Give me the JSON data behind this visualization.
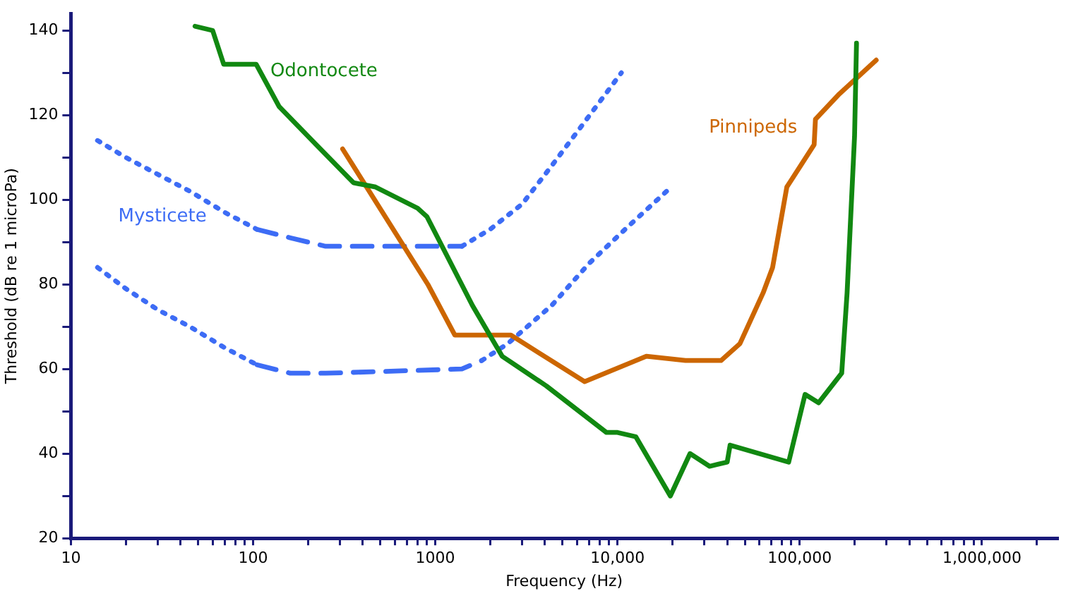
{
  "chart_data": {
    "type": "line",
    "xlabel": "Frequency (Hz)",
    "ylabel": "Threshold (dB re 1 microPa)",
    "log": "x",
    "grid": false,
    "marker": "none",
    "xlim": [
      10,
      2600000
    ],
    "ylim": [
      20,
      144
    ],
    "xticks": [
      {
        "value": 10,
        "label": "10"
      },
      {
        "value": 20,
        "label": null
      },
      {
        "value": 30,
        "label": null
      },
      {
        "value": 40,
        "label": null
      },
      {
        "value": 50,
        "label": null
      },
      {
        "value": 60,
        "label": null
      },
      {
        "value": 70,
        "label": null
      },
      {
        "value": 80,
        "label": null
      },
      {
        "value": 90,
        "label": null
      },
      {
        "value": 100,
        "label": "100"
      },
      {
        "value": 200,
        "label": null
      },
      {
        "value": 300,
        "label": null
      },
      {
        "value": 400,
        "label": null
      },
      {
        "value": 500,
        "label": null
      },
      {
        "value": 600,
        "label": null
      },
      {
        "value": 700,
        "label": null
      },
      {
        "value": 800,
        "label": null
      },
      {
        "value": 900,
        "label": null
      },
      {
        "value": 1000,
        "label": "1000"
      },
      {
        "value": 2000,
        "label": null
      },
      {
        "value": 3000,
        "label": null
      },
      {
        "value": 4000,
        "label": null
      },
      {
        "value": 5000,
        "label": null
      },
      {
        "value": 6000,
        "label": null
      },
      {
        "value": 7000,
        "label": null
      },
      {
        "value": 8000,
        "label": null
      },
      {
        "value": 9000,
        "label": null
      },
      {
        "value": 10000,
        "label": "10,000"
      },
      {
        "value": 20000,
        "label": null
      },
      {
        "value": 30000,
        "label": null
      },
      {
        "value": 40000,
        "label": null
      },
      {
        "value": 50000,
        "label": null
      },
      {
        "value": 60000,
        "label": null
      },
      {
        "value": 70000,
        "label": null
      },
      {
        "value": 80000,
        "label": null
      },
      {
        "value": 90000,
        "label": null
      },
      {
        "value": 100000,
        "label": "100,000"
      },
      {
        "value": 200000,
        "label": null
      },
      {
        "value": 300000,
        "label": null
      },
      {
        "value": 400000,
        "label": null
      },
      {
        "value": 500000,
        "label": null
      },
      {
        "value": 600000,
        "label": null
      },
      {
        "value": 700000,
        "label": null
      },
      {
        "value": 800000,
        "label": null
      },
      {
        "value": 900000,
        "label": null
      },
      {
        "value": 1000000,
        "label": "1,000,000"
      },
      {
        "value": 2000000,
        "label": null
      }
    ],
    "yticks": [
      20,
      {
        "value": 30,
        "label": null
      },
      40,
      {
        "value": 50,
        "label": null
      },
      60,
      {
        "value": 70,
        "label": null
      },
      80,
      {
        "value": 90,
        "label": null
      },
      100,
      {
        "value": 110,
        "label": null
      },
      120,
      {
        "value": 130,
        "label": null
      },
      140
    ],
    "series": [
      {
        "name": "Odontocete",
        "color": "#118811",
        "line_style": "solid",
        "x": [
          48,
          60,
          69,
          104,
          139,
          222,
          356,
          470,
          800,
          900,
          1600,
          2330,
          4070,
          8700,
          10000,
          12600,
          19500,
          25000,
          32000,
          40000,
          41500,
          87000,
          107000,
          127000,
          170000,
          182000,
          200000,
          205000
        ],
        "values": [
          141,
          140,
          132,
          132,
          122,
          113,
          104,
          103,
          98,
          96,
          75,
          63,
          56,
          45,
          45,
          44,
          30,
          40,
          37,
          38,
          42,
          38,
          54,
          52,
          59,
          78,
          115,
          137
        ]
      },
      {
        "name": "Pinnipeds",
        "color": "#cc6600",
        "line_style": "solid",
        "x": [
          310,
          910,
          1280,
          2600,
          6600,
          14400,
          23600,
          37000,
          47000,
          63000,
          71000,
          85000,
          120000,
          122000,
          165000,
          263000
        ],
        "values": [
          112,
          80,
          68,
          68,
          57,
          63,
          62,
          62,
          66,
          78,
          84,
          103,
          113,
          119,
          125,
          133
        ]
      },
      {
        "name": "Mysticete",
        "color": "#3d6cf5",
        "line_style": [
          "dotted",
          "dotted",
          "dotted",
          "dotted",
          "dotted",
          "dashed",
          "dashed",
          "dashed",
          "dotted",
          "dotted",
          "dotted",
          "dotted",
          "dotted"
        ],
        "x": [
          14,
          20,
          30,
          45,
          70,
          105,
          160,
          250,
          1400,
          2000,
          3000,
          4350,
          6500,
          10500
        ],
        "values": [
          114,
          110,
          106,
          102,
          97,
          93,
          91,
          89,
          89,
          93,
          99,
          108,
          118,
          130
        ]
      },
      {
        "color": "#3d6cf5",
        "line_style": [
          "dotted",
          "dotted",
          "dotted",
          "dotted",
          "dotted",
          "dashed",
          "dashed",
          "dashed",
          "dashed",
          "dotted",
          "dotted",
          "dotted",
          "dotted",
          "dotted"
        ],
        "x": [
          14,
          20,
          30,
          45,
          70,
          105,
          160,
          250,
          1400,
          1800,
          2500,
          4350,
          7000,
          11000,
          18600
        ],
        "values": [
          84,
          79,
          74,
          70,
          65,
          61,
          59,
          59,
          60,
          62,
          66,
          75,
          85,
          93,
          102
        ]
      }
    ]
  }
}
